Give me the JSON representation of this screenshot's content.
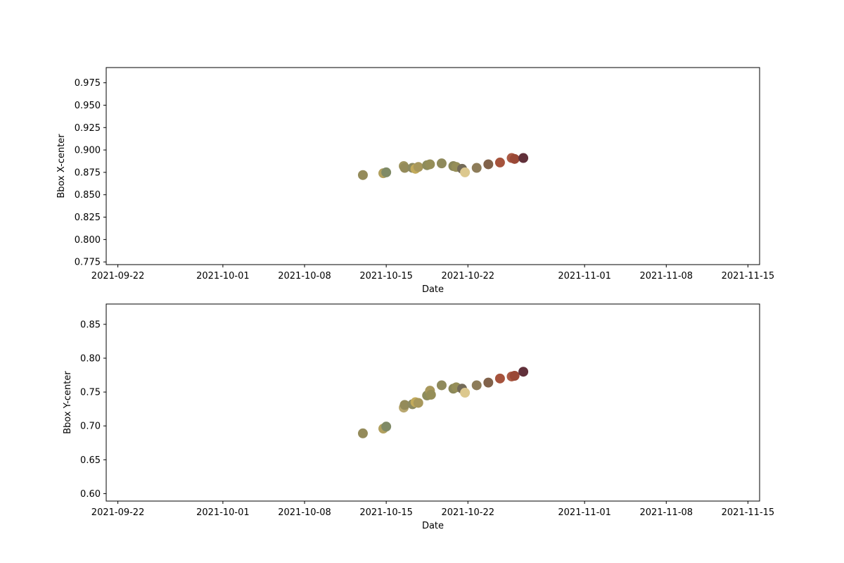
{
  "chart_data": [
    {
      "type": "scatter",
      "title": "",
      "xlabel": "Date",
      "ylabel": "Bbox X-center",
      "xlim": [
        "2021-09-21",
        "2021-11-16"
      ],
      "ylim": [
        0.772,
        0.992
      ],
      "x_ticks": [
        "2021-09-22",
        "2021-10-01",
        "2021-10-08",
        "2021-10-15",
        "2021-10-22",
        "2021-11-01",
        "2021-11-08",
        "2021-11-15"
      ],
      "y_ticks": [
        "0.775",
        "0.800",
        "0.825",
        "0.850",
        "0.875",
        "0.900",
        "0.925",
        "0.950",
        "0.975"
      ],
      "grid": false,
      "legend": "none",
      "points": [
        {
          "x": "2021-10-13",
          "y": 0.872,
          "color": "#948b5a"
        },
        {
          "x": "2021-10-14 18:00",
          "y": 0.874,
          "color": "#b1a05e"
        },
        {
          "x": "2021-10-15 00:00",
          "y": 0.875,
          "color": "#7f8a66"
        },
        {
          "x": "2021-10-16 12:00",
          "y": 0.882,
          "color": "#9f9560"
        },
        {
          "x": "2021-10-16 14:00",
          "y": 0.88,
          "color": "#948b5a"
        },
        {
          "x": "2021-10-17 06:00",
          "y": 0.88,
          "color": "#8c8a61"
        },
        {
          "x": "2021-10-17 12:00",
          "y": 0.879,
          "color": "#c2aa5b"
        },
        {
          "x": "2021-10-17 18:00",
          "y": 0.881,
          "color": "#a8985c"
        },
        {
          "x": "2021-10-18 12:00",
          "y": 0.883,
          "color": "#8d8c5c"
        },
        {
          "x": "2021-10-18 18:00",
          "y": 0.884,
          "color": "#958e58"
        },
        {
          "x": "2021-10-19 18:00",
          "y": 0.885,
          "color": "#8f8a5c"
        },
        {
          "x": "2021-10-20 18:00",
          "y": 0.882,
          "color": "#8a8759"
        },
        {
          "x": "2021-10-21 00:00",
          "y": 0.881,
          "color": "#958e58"
        },
        {
          "x": "2021-10-21 12:00",
          "y": 0.879,
          "color": "#736a58"
        },
        {
          "x": "2021-10-21 18:00",
          "y": 0.875,
          "color": "#dcc88e"
        },
        {
          "x": "2021-10-22 18:00",
          "y": 0.88,
          "color": "#8d7c59"
        },
        {
          "x": "2021-10-23 18:00",
          "y": 0.884,
          "color": "#81624a"
        },
        {
          "x": "2021-10-24 18:00",
          "y": 0.886,
          "color": "#a6533c"
        },
        {
          "x": "2021-10-25 18:00",
          "y": 0.891,
          "color": "#aa5a45"
        },
        {
          "x": "2021-10-26 00:00",
          "y": 0.89,
          "color": "#9a4836"
        },
        {
          "x": "2021-10-26 18:00",
          "y": 0.891,
          "color": "#61303a"
        }
      ]
    },
    {
      "type": "scatter",
      "title": "",
      "xlabel": "Date",
      "ylabel": "Bbox Y-center",
      "xlim": [
        "2021-09-21",
        "2021-11-16"
      ],
      "ylim": [
        0.589,
        0.88
      ],
      "x_ticks": [
        "2021-09-22",
        "2021-10-01",
        "2021-10-08",
        "2021-10-15",
        "2021-10-22",
        "2021-11-01",
        "2021-11-08",
        "2021-11-15"
      ],
      "y_ticks": [
        "0.60",
        "0.65",
        "0.70",
        "0.75",
        "0.80",
        "0.85"
      ],
      "grid": false,
      "legend": "none",
      "points": [
        {
          "x": "2021-10-13",
          "y": 0.689,
          "color": "#948b5a"
        },
        {
          "x": "2021-10-14 18:00",
          "y": 0.696,
          "color": "#b1a05e"
        },
        {
          "x": "2021-10-15 00:00",
          "y": 0.699,
          "color": "#7f8a66"
        },
        {
          "x": "2021-10-16 12:00",
          "y": 0.727,
          "color": "#b9a871"
        },
        {
          "x": "2021-10-16 14:00",
          "y": 0.731,
          "color": "#948b5a"
        },
        {
          "x": "2021-10-17 06:00",
          "y": 0.732,
          "color": "#8c8a61"
        },
        {
          "x": "2021-10-17 12:00",
          "y": 0.735,
          "color": "#c2aa5b"
        },
        {
          "x": "2021-10-17 18:00",
          "y": 0.734,
          "color": "#a8985c"
        },
        {
          "x": "2021-10-18 12:00",
          "y": 0.745,
          "color": "#8d8c5c"
        },
        {
          "x": "2021-10-18 18:00",
          "y": 0.752,
          "color": "#a8985c"
        },
        {
          "x": "2021-10-18 20:00",
          "y": 0.746,
          "color": "#958e58"
        },
        {
          "x": "2021-10-19 18:00",
          "y": 0.76,
          "color": "#8f8a5c"
        },
        {
          "x": "2021-10-20 18:00",
          "y": 0.755,
          "color": "#8a8759"
        },
        {
          "x": "2021-10-21 00:00",
          "y": 0.757,
          "color": "#958e58"
        },
        {
          "x": "2021-10-21 12:00",
          "y": 0.755,
          "color": "#736a58"
        },
        {
          "x": "2021-10-21 18:00",
          "y": 0.749,
          "color": "#dcc88e"
        },
        {
          "x": "2021-10-22 18:00",
          "y": 0.76,
          "color": "#8d7c59"
        },
        {
          "x": "2021-10-23 18:00",
          "y": 0.764,
          "color": "#81624a"
        },
        {
          "x": "2021-10-24 18:00",
          "y": 0.77,
          "color": "#a6533c"
        },
        {
          "x": "2021-10-25 18:00",
          "y": 0.773,
          "color": "#aa5a45"
        },
        {
          "x": "2021-10-26 00:00",
          "y": 0.774,
          "color": "#9a4836"
        },
        {
          "x": "2021-10-26 18:00",
          "y": 0.78,
          "color": "#61303a"
        }
      ]
    }
  ]
}
